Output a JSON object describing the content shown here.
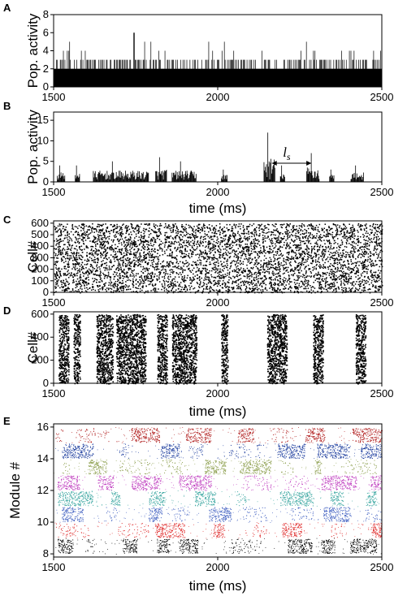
{
  "chart_data": [
    {
      "panel": "A",
      "type": "bar",
      "ylabel": "Pop. activity",
      "xlim": [
        1500,
        2500
      ],
      "ylim": [
        0,
        8
      ],
      "xticks": [
        "1500",
        "2000",
        "2500"
      ],
      "yticks": [
        "0",
        "2",
        "4",
        "6",
        "8"
      ],
      "description_values": {
        "baseline": 2,
        "typical_peak": 3,
        "max_peak": 6
      }
    },
    {
      "panel": "B",
      "type": "bar",
      "ylabel": "Pop. activity",
      "xlabel": "time (ms)",
      "xlim": [
        1500,
        2500
      ],
      "ylim": [
        0,
        17
      ],
      "xticks": [
        "1500",
        "2000",
        "2500"
      ],
      "yticks": [
        "0",
        "5",
        "10",
        "15"
      ],
      "annotation": "l",
      "annotation_sub": "s",
      "bursts": [
        {
          "start": 1510,
          "end": 1535,
          "peak": 4
        },
        {
          "start": 1565,
          "end": 1580,
          "peak": 4
        },
        {
          "start": 1620,
          "end": 1790,
          "peak": 5
        },
        {
          "start": 1810,
          "end": 1845,
          "peak": 6
        },
        {
          "start": 1860,
          "end": 1935,
          "peak": 5
        },
        {
          "start": 2010,
          "end": 2030,
          "peak": 3
        },
        {
          "start": 2140,
          "end": 2175,
          "peak": 12
        },
        {
          "start": 2190,
          "end": 2205,
          "peak": 4
        },
        {
          "start": 2270,
          "end": 2310,
          "peak": 7
        },
        {
          "start": 2340,
          "end": 2355,
          "peak": 3
        },
        {
          "start": 2405,
          "end": 2445,
          "peak": 4
        }
      ]
    },
    {
      "panel": "C",
      "type": "scatter",
      "ylabel": "Cell#",
      "xlim": [
        1500,
        2500
      ],
      "ylim": [
        0,
        620
      ],
      "xticks": [
        "1500",
        "2000",
        "2500"
      ],
      "yticks": [
        "0",
        "100",
        "200",
        "300",
        "400",
        "500",
        "600"
      ]
    },
    {
      "panel": "D",
      "type": "scatter",
      "ylabel": "Cell#",
      "xlabel": "time (ms)",
      "xlim": [
        1500,
        2500
      ],
      "ylim": [
        0,
        620
      ],
      "xticks": [
        "1500",
        "2000",
        "2500"
      ],
      "yticks": [
        "0",
        "200",
        "400",
        "600"
      ],
      "bands": [
        [
          1515,
          1545
        ],
        [
          1560,
          1580
        ],
        [
          1630,
          1680
        ],
        [
          1690,
          1780
        ],
        [
          1815,
          1845
        ],
        [
          1860,
          1935
        ],
        [
          2010,
          2030
        ],
        [
          2150,
          2210
        ],
        [
          2290,
          2320
        ],
        [
          2420,
          2450
        ]
      ]
    },
    {
      "panel": "E",
      "type": "scatter",
      "ylabel": "Module #",
      "xlabel": "time (ms)",
      "xlim": [
        1500,
        2500
      ],
      "ylim": [
        7.8,
        16.2
      ],
      "xticks": [
        "1500",
        "2000",
        "2500"
      ],
      "yticks": [
        "8",
        "10",
        "12",
        "14",
        "16"
      ],
      "modules": [
        {
          "module": 15,
          "color": "#b22222"
        },
        {
          "module": 14,
          "color": "#1f3f9f"
        },
        {
          "module": 13,
          "color": "#8ea050"
        },
        {
          "module": 12,
          "color": "#c040c0"
        },
        {
          "module": 11,
          "color": "#3aa6a0"
        },
        {
          "module": 10,
          "color": "#3f5fc0"
        },
        {
          "module": 9,
          "color": "#e03030"
        },
        {
          "module": 8,
          "color": "#000000"
        }
      ]
    }
  ]
}
